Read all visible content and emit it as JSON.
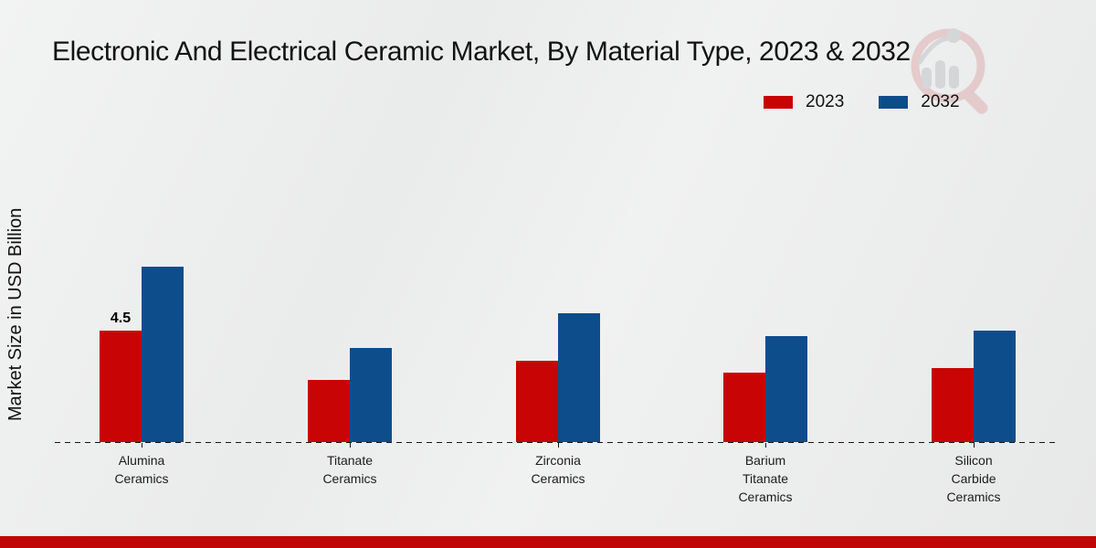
{
  "title": "Electronic And Electrical Ceramic Market, By Material Type, 2023 & 2032",
  "y_axis_label": "Market Size in USD Billion",
  "legend": {
    "items": [
      {
        "label": "2023",
        "color": "#c80404"
      },
      {
        "label": "2032",
        "color": "#0e4d8c"
      }
    ]
  },
  "watermark_icon": "magnifier-bar-chart-logo",
  "footer_bar_color": "#c00606",
  "chart_data": {
    "type": "bar",
    "title": "Electronic And Electrical Ceramic Market, By Material Type, 2023 & 2032",
    "xlabel": "",
    "ylabel": "Market Size in USD Billion",
    "categories": [
      "Alumina Ceramics",
      "Titanate Ceramics",
      "Zirconia Ceramics",
      "Barium Titanate Ceramics",
      "Silicon Carbide Ceramics"
    ],
    "categories_lines": [
      [
        "Alumina",
        "Ceramics"
      ],
      [
        "Titanate",
        "Ceramics"
      ],
      [
        "Zirconia",
        "Ceramics"
      ],
      [
        "Barium",
        "Titanate",
        "Ceramics"
      ],
      [
        "Silicon",
        "Carbide",
        "Ceramics"
      ]
    ],
    "series": [
      {
        "name": "2023",
        "color": "#c80404",
        "values": [
          4.5,
          2.5,
          3.3,
          2.8,
          3.0
        ]
      },
      {
        "name": "2032",
        "color": "#0e4d8c",
        "values": [
          7.1,
          3.8,
          5.2,
          4.3,
          4.5
        ]
      }
    ],
    "bar_labels": [
      {
        "series_index": 0,
        "category_index": 0,
        "text": "4.5"
      }
    ],
    "ylim": [
      0,
      7.5
    ],
    "grid": false,
    "y_tick_labels_shown": false,
    "legend_position": "top-right",
    "baseline_style": "dashed"
  }
}
